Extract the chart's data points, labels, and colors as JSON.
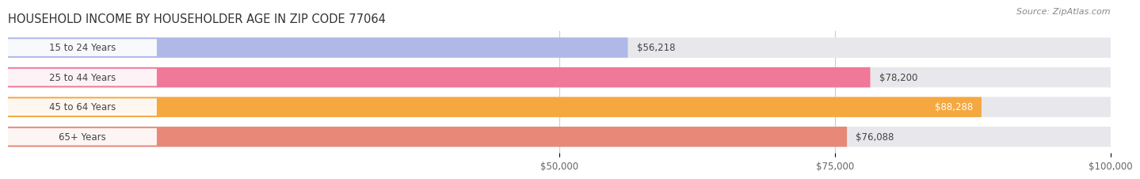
{
  "title": "HOUSEHOLD INCOME BY HOUSEHOLDER AGE IN ZIP CODE 77064",
  "source": "Source: ZipAtlas.com",
  "categories": [
    "15 to 24 Years",
    "25 to 44 Years",
    "45 to 64 Years",
    "65+ Years"
  ],
  "values": [
    56218,
    78200,
    88288,
    76088
  ],
  "bar_colors": [
    "#b0b8e8",
    "#f07898",
    "#f5a840",
    "#e88878"
  ],
  "bar_bg_color": "#eeeeee",
  "value_labels": [
    "$56,218",
    "$78,200",
    "$88,288",
    "$76,088"
  ],
  "xlim": [
    0,
    100000
  ],
  "xticks": [
    50000,
    75000,
    100000
  ],
  "xtick_labels": [
    "$50,000",
    "$75,000",
    "$100,000"
  ],
  "background_color": "#ffffff",
  "title_fontsize": 10.5,
  "source_fontsize": 8,
  "label_fontsize": 8.5,
  "tick_fontsize": 8.5,
  "value_label_inside_threshold": 85000
}
